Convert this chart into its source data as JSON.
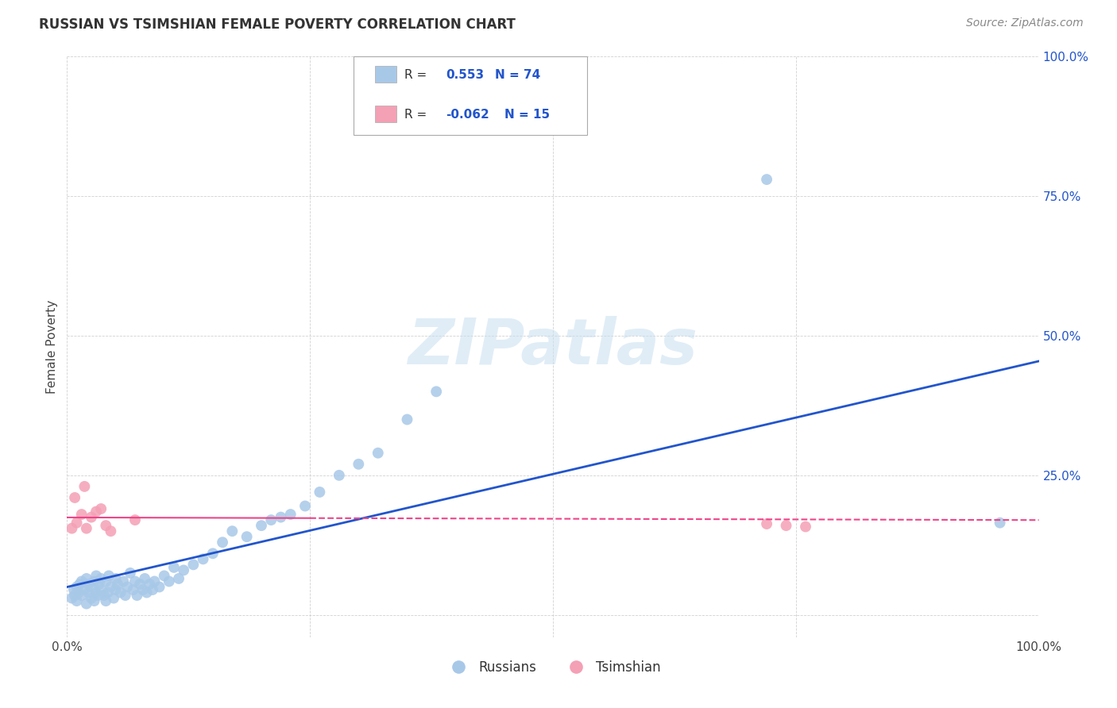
{
  "title": "RUSSIAN VS TSIMSHIAN FEMALE POVERTY CORRELATION CHART",
  "source": "Source: ZipAtlas.com",
  "ylabel": "Female Poverty",
  "russian_R": 0.553,
  "russian_N": 74,
  "tsimshian_R": -0.062,
  "tsimshian_N": 15,
  "russian_color": "#a8c8e8",
  "tsimshian_color": "#f4a0b5",
  "russian_line_color": "#2255cc",
  "tsimshian_line_color": "#ee4488",
  "background_color": "#ffffff",
  "watermark_color": "#ddeeff",
  "russian_scatter_x": [
    0.005,
    0.007,
    0.008,
    0.01,
    0.01,
    0.012,
    0.013,
    0.015,
    0.015,
    0.018,
    0.02,
    0.02,
    0.022,
    0.022,
    0.025,
    0.025,
    0.028,
    0.028,
    0.03,
    0.03,
    0.032,
    0.033,
    0.035,
    0.035,
    0.038,
    0.04,
    0.04,
    0.042,
    0.043,
    0.045,
    0.048,
    0.05,
    0.05,
    0.052,
    0.055,
    0.058,
    0.06,
    0.062,
    0.065,
    0.068,
    0.07,
    0.072,
    0.075,
    0.078,
    0.08,
    0.082,
    0.085,
    0.088,
    0.09,
    0.095,
    0.1,
    0.105,
    0.11,
    0.115,
    0.12,
    0.13,
    0.14,
    0.15,
    0.16,
    0.17,
    0.185,
    0.2,
    0.21,
    0.22,
    0.23,
    0.245,
    0.26,
    0.28,
    0.3,
    0.32,
    0.35,
    0.38,
    0.72,
    0.96
  ],
  "russian_scatter_y": [
    0.03,
    0.045,
    0.035,
    0.025,
    0.05,
    0.04,
    0.055,
    0.035,
    0.06,
    0.045,
    0.02,
    0.065,
    0.04,
    0.055,
    0.03,
    0.05,
    0.025,
    0.06,
    0.04,
    0.07,
    0.035,
    0.055,
    0.045,
    0.065,
    0.035,
    0.025,
    0.06,
    0.04,
    0.07,
    0.05,
    0.03,
    0.045,
    0.065,
    0.055,
    0.04,
    0.06,
    0.035,
    0.05,
    0.075,
    0.045,
    0.06,
    0.035,
    0.055,
    0.045,
    0.065,
    0.04,
    0.055,
    0.045,
    0.06,
    0.05,
    0.07,
    0.06,
    0.085,
    0.065,
    0.08,
    0.09,
    0.1,
    0.11,
    0.13,
    0.15,
    0.14,
    0.16,
    0.17,
    0.175,
    0.18,
    0.195,
    0.22,
    0.25,
    0.27,
    0.29,
    0.35,
    0.4,
    0.78,
    0.165
  ],
  "tsimshian_scatter_x": [
    0.005,
    0.008,
    0.01,
    0.015,
    0.018,
    0.02,
    0.025,
    0.03,
    0.035,
    0.04,
    0.045,
    0.07,
    0.72,
    0.74,
    0.76
  ],
  "tsimshian_scatter_y": [
    0.155,
    0.21,
    0.165,
    0.18,
    0.23,
    0.155,
    0.175,
    0.185,
    0.19,
    0.16,
    0.15,
    0.17,
    0.163,
    0.16,
    0.158
  ]
}
